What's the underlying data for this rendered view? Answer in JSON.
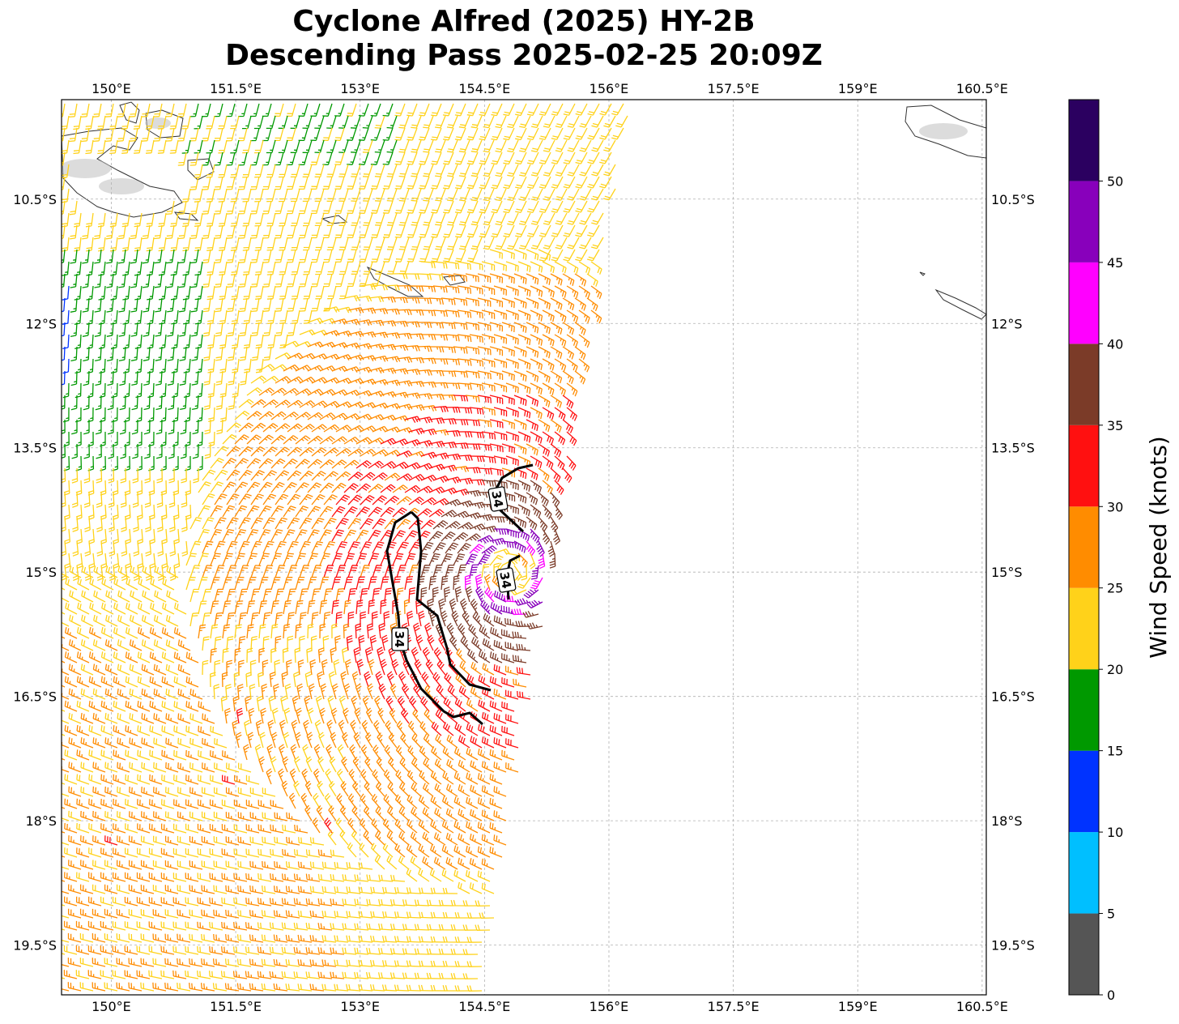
{
  "title": {
    "line1": "Cyclone Alfred (2025) HY-2B",
    "line2": "Descending Pass 2025-02-25 20:09Z"
  },
  "map": {
    "lon_range": [
      149.4,
      160.55
    ],
    "lat_range": [
      -20.1,
      -9.3
    ],
    "lon_ticks": [
      {
        "value": 150.0,
        "label": "150°E"
      },
      {
        "value": 151.5,
        "label": "151.5°E"
      },
      {
        "value": 153.0,
        "label": "153°E"
      },
      {
        "value": 154.5,
        "label": "154.5°E"
      },
      {
        "value": 156.0,
        "label": "156°E"
      },
      {
        "value": 157.5,
        "label": "157.5°E"
      },
      {
        "value": 159.0,
        "label": "159°E"
      },
      {
        "value": 160.5,
        "label": "160.5°E"
      }
    ],
    "lat_ticks": [
      {
        "value": -10.5,
        "label": "10.5°S"
      },
      {
        "value": -12.0,
        "label": "12°S"
      },
      {
        "value": -13.5,
        "label": "13.5°S"
      },
      {
        "value": -15.0,
        "label": "15°S"
      },
      {
        "value": -16.5,
        "label": "16.5°S"
      },
      {
        "value": -18.0,
        "label": "18°S"
      },
      {
        "value": -19.5,
        "label": "19.5°S"
      }
    ],
    "grid": true,
    "land_color": "#ffffff",
    "coastline_color": "#333333"
  },
  "wind": {
    "center_lon": 154.8,
    "center_lat": -15.0,
    "contour_label": "34",
    "contour_color": "#000000"
  },
  "colorbar": {
    "label": "Wind Speed (knots)",
    "bins": [
      {
        "min": 0,
        "max": 5,
        "color": "#555555"
      },
      {
        "min": 5,
        "max": 10,
        "color": "#00bfff"
      },
      {
        "min": 10,
        "max": 15,
        "color": "#0033ff"
      },
      {
        "min": 15,
        "max": 20,
        "color": "#009900"
      },
      {
        "min": 20,
        "max": 25,
        "color": "#ffd21a"
      },
      {
        "min": 25,
        "max": 30,
        "color": "#ff8c00"
      },
      {
        "min": 30,
        "max": 35,
        "color": "#ff1010"
      },
      {
        "min": 35,
        "max": 40,
        "color": "#7b3b28"
      },
      {
        "min": 40,
        "max": 45,
        "color": "#ff00ff"
      },
      {
        "min": 45,
        "max": 50,
        "color": "#8800bb"
      },
      {
        "min": 50,
        "max": 55,
        "color": "#2b0060"
      }
    ],
    "ticks": [
      {
        "value": 0,
        "label": "0"
      },
      {
        "value": 5,
        "label": "5"
      },
      {
        "value": 10,
        "label": "10"
      },
      {
        "value": 15,
        "label": "15"
      },
      {
        "value": 20,
        "label": "20"
      },
      {
        "value": 25,
        "label": "25"
      },
      {
        "value": 30,
        "label": "30"
      },
      {
        "value": 35,
        "label": "35"
      },
      {
        "value": 40,
        "label": "40"
      },
      {
        "value": 45,
        "label": "45"
      },
      {
        "value": 50,
        "label": "50"
      }
    ]
  }
}
